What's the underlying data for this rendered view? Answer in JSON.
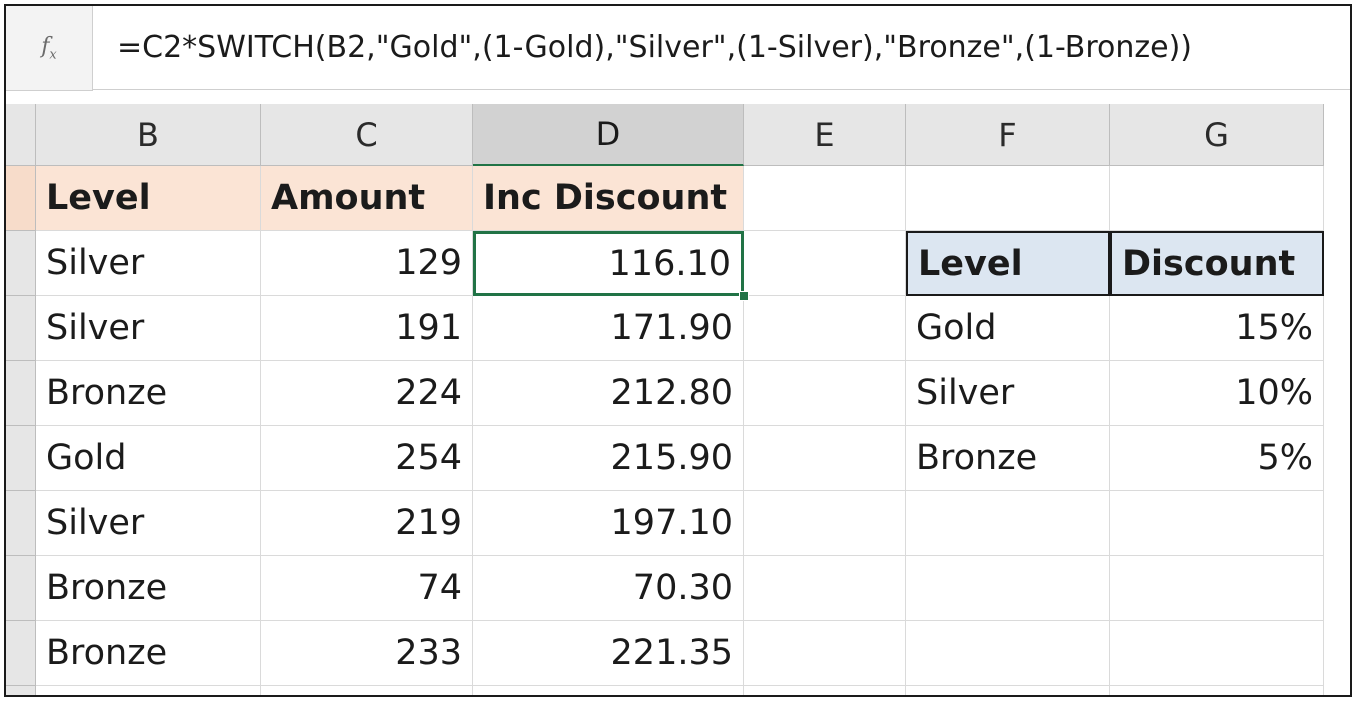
{
  "formula_bar": {
    "fx_label": "fx",
    "formula": "=C2*SWITCH(B2,\"Gold\",(1-Gold),\"Silver\",(1-Silver),\"Bronze\",(1-Bronze))"
  },
  "columns": [
    "B",
    "C",
    "D",
    "E",
    "F",
    "G"
  ],
  "selected_column": "D",
  "table": {
    "headers": [
      "Level",
      "Amount",
      "Inc Discount"
    ],
    "rows": [
      [
        "Silver",
        "129",
        "116.10"
      ],
      [
        "Silver",
        "191",
        "171.90"
      ],
      [
        "Bronze",
        "224",
        "212.80"
      ],
      [
        "Gold",
        "254",
        "215.90"
      ],
      [
        "Silver",
        "219",
        "197.10"
      ],
      [
        "Bronze",
        "74",
        "70.30"
      ],
      [
        "Bronze",
        "233",
        "221.35"
      ]
    ]
  },
  "lookup": {
    "headers": [
      "Level",
      "Discount"
    ],
    "rows": [
      [
        "Gold",
        "15%"
      ],
      [
        "Silver",
        "10%"
      ],
      [
        "Bronze",
        "5%"
      ]
    ]
  },
  "colors": {
    "header_fill": "#fbe4d5",
    "lookup_header_fill": "#dce6f1",
    "selection": "#217346"
  }
}
